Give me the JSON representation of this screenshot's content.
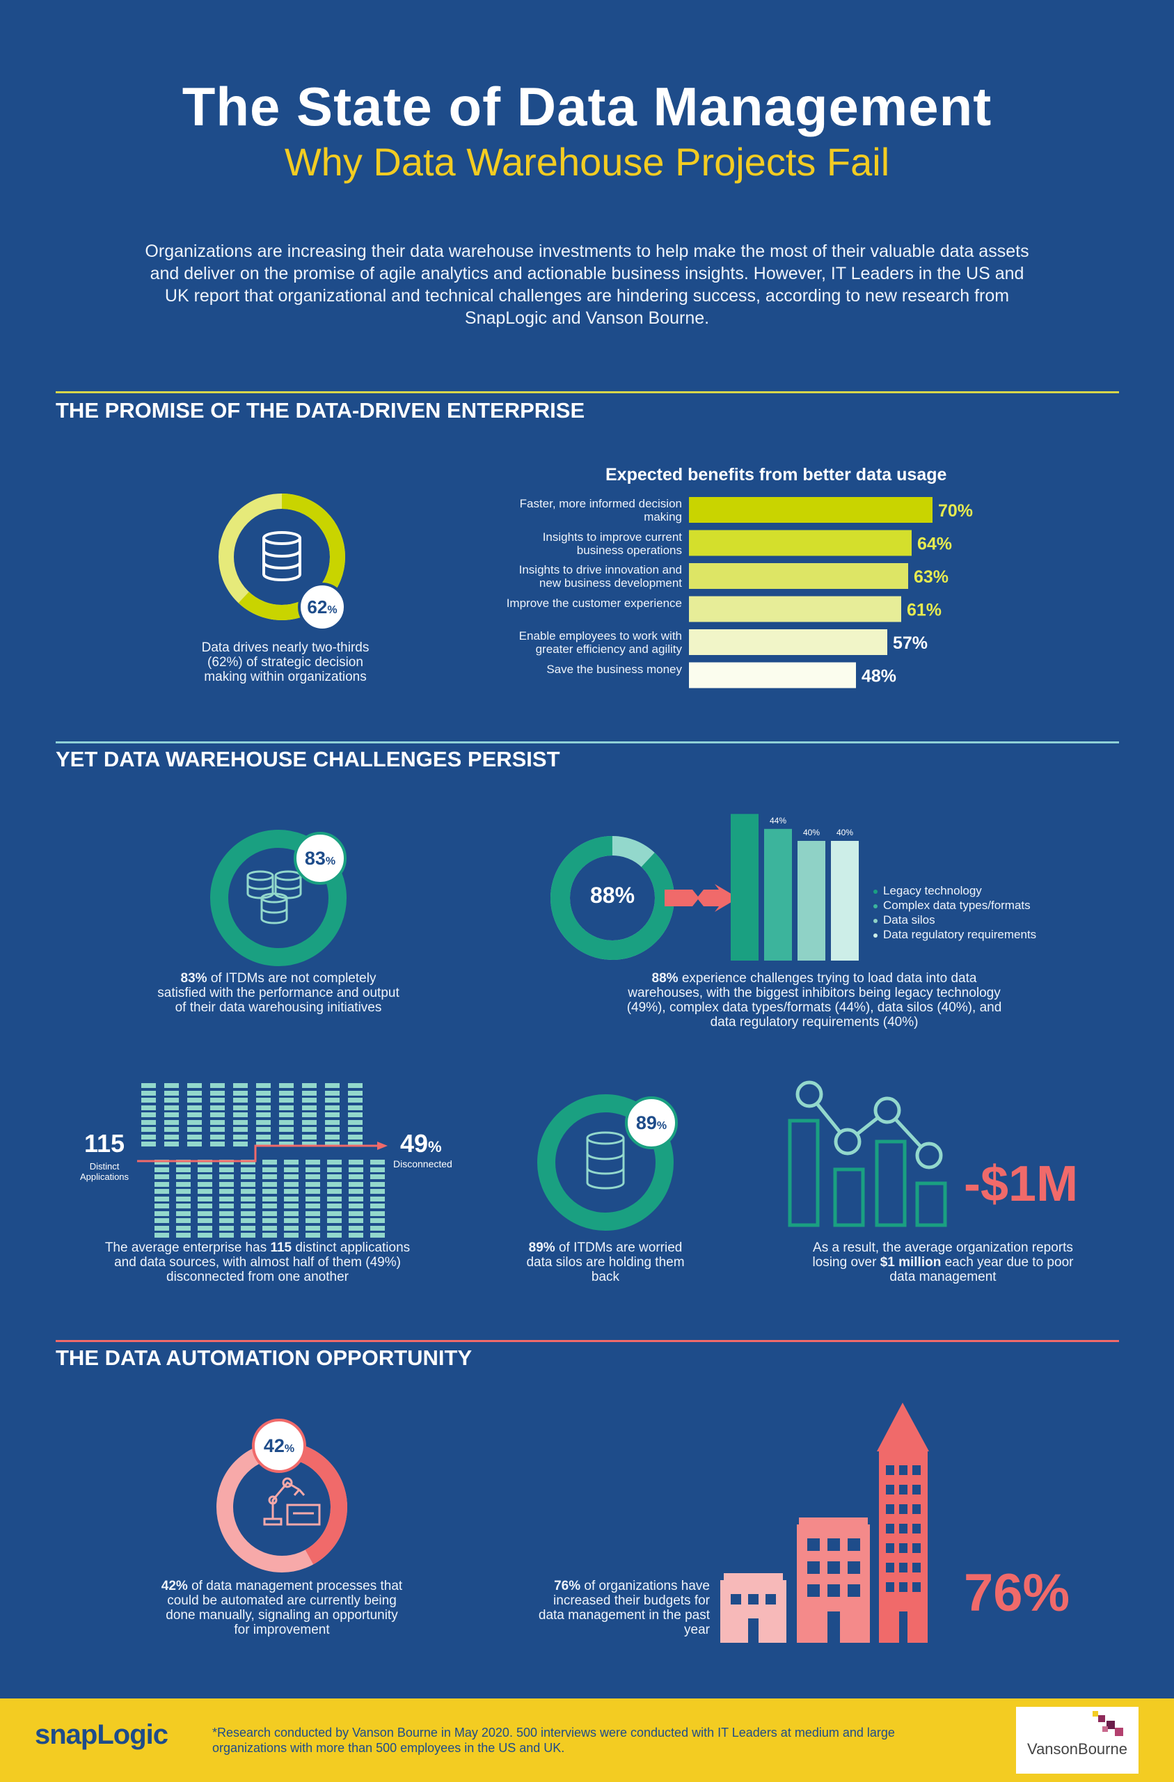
{
  "header": {
    "title": "The State of Data Management",
    "subtitle": "Why Data Warehouse Projects Fail",
    "intro": "Organizations are increasing their data warehouse investments to help make the most of their valuable data assets and deliver on the promise of agile analytics and actionable business insights. However, IT Leaders in the US and UK report that organizational and technical challenges are hindering success, according to new research from SnapLogic and Vanson Bourne."
  },
  "section1": {
    "heading": "THE PROMISE OF THE DATA-DRIVEN ENTERPRISE",
    "donut_badge_num": "62",
    "donut_badge_pct": "%",
    "donut_caption": "Data drives nearly two-thirds (62%) of strategic decision making within organizations",
    "colors": {
      "rule": "#d7d64a",
      "donut_fill": "#c9d400",
      "donut_track": "#e6ea7a"
    }
  },
  "section2": {
    "heading": "YET DATA WAREHOUSE CHALLENGES PERSIST",
    "itdm_badge_num": "83",
    "itdm_badge_pct": "%",
    "itdm_caption_bold": "83%",
    "itdm_caption": " of ITDMs are not completely satisfied with the performance and output of their data warehousing initiatives",
    "challenges_donut_label": "88%",
    "challenges_caption_bold": "88%",
    "challenges_caption": " experience challenges trying to load data into data warehouses, with the biggest inhibitors being legacy technology (49%), complex data types/formats (44%), data silos (40%), and data regulatory requirements (40%)",
    "apps_number": "115",
    "apps_label": "Distinct Applications",
    "disconnected_num": "49",
    "disconnected_pct": "%",
    "disconnected_label": "Disconnected",
    "apps_caption_a": "The average enterprise has ",
    "apps_caption_bold": "115",
    "apps_caption_b": " distinct applications and data sources, with almost half of them (49%) disconnected from one another",
    "silos_badge_num": "89",
    "silos_badge_pct": "%",
    "silos_caption_bold": "89%",
    "silos_caption": " of ITDMs are worried data silos are holding them back",
    "loss_value": "-$1M",
    "loss_caption_a": "As a result, the average organization reports losing over ",
    "loss_caption_bold": "$1 million",
    "loss_caption_b": " each year due to poor data management",
    "colors": {
      "rule": "#8fd0d6",
      "teal": "#1aa081",
      "teal_light": "#93d8cc",
      "coral": "#f06a6a"
    }
  },
  "section3": {
    "heading": "THE DATA AUTOMATION OPPORTUNITY",
    "auto_badge_num": "42",
    "auto_badge_pct": "%",
    "auto_caption_bold": "42%",
    "auto_caption": " of data management processes that could be automated are currently being done manually, signaling an opportunity for improvement",
    "budget_caption_bold": "76%",
    "budget_caption": " of organizations have increased their budgets for data management in the past year",
    "budget_value": "76%",
    "colors": {
      "rule": "#f06a6a",
      "coral": "#f06a6a",
      "pink": "#f7a9a9"
    }
  },
  "footer": {
    "logo_left": "snapLogic",
    "note": "*Research conducted by Vanson Bourne in May 2020. 500 interviews were conducted with IT Leaders at medium and large organizations with more than 500 employees in the US and UK.",
    "logo_right": "VansonBourne"
  },
  "chart_data": [
    {
      "type": "bar",
      "orientation": "horizontal",
      "title": "Expected benefits from better data usage",
      "categories": [
        "Faster, more informed decision making",
        "Insights to improve current business operations",
        "Insights to drive innovation and new business development",
        "Improve the customer experience",
        "Enable employees to work with greater efficiency and agility",
        "Save the business money"
      ],
      "values": [
        70,
        64,
        63,
        61,
        57,
        48
      ],
      "value_labels": [
        "70%",
        "64%",
        "63%",
        "61%",
        "57%",
        "48%"
      ],
      "colors": [
        "#c9d400",
        "#d4df2c",
        "#dde565",
        "#e7ed98",
        "#f1f5c8",
        "#fbfdee"
      ]
    },
    {
      "type": "bar",
      "title": "",
      "categories": [
        "Legacy technology",
        "Complex data types/formats",
        "Data silos",
        "Data regulatory requirements"
      ],
      "values": [
        49,
        44,
        40,
        40
      ],
      "value_labels": [
        "49%",
        "44%",
        "40%",
        "40%"
      ],
      "colors": [
        "#1aa081",
        "#3cb49c",
        "#8fd2c6",
        "#cdeee8"
      ],
      "legend": "right"
    }
  ]
}
